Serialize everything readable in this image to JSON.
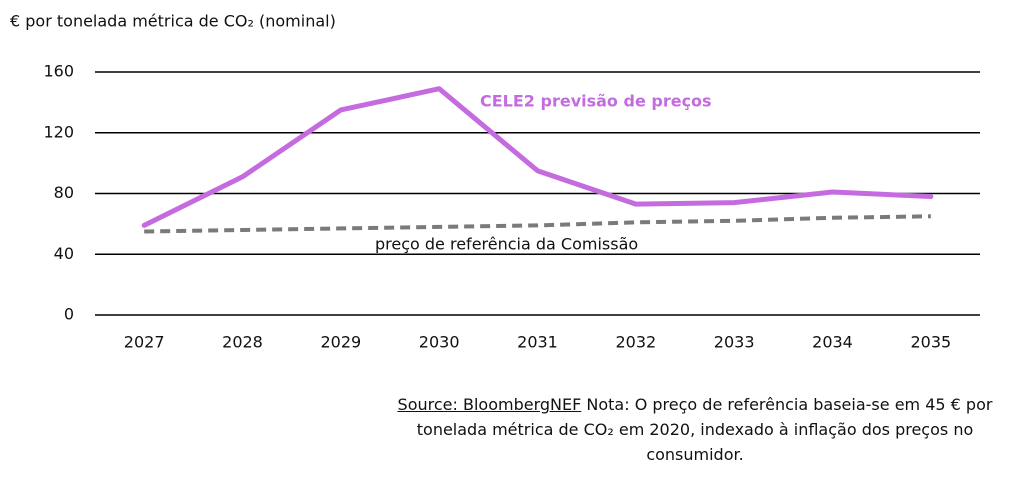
{
  "chart_data": {
    "type": "line",
    "y_label": "€ por tonelada métrica de CO₂ (nominal)",
    "categories": [
      "2027",
      "2028",
      "2029",
      "2030",
      "2031",
      "2032",
      "2033",
      "2034",
      "2035"
    ],
    "series": [
      {
        "name": "CELE2 previsão de preços",
        "color": "#c56be0",
        "dashed": false,
        "values": [
          59,
          91,
          135,
          149,
          95,
          73,
          74,
          81,
          78
        ]
      },
      {
        "name": "preço de referência da Comissão",
        "color": "#7a7a7a",
        "dashed": true,
        "values": [
          55,
          56,
          57,
          58,
          59,
          61,
          62,
          64,
          65
        ]
      }
    ],
    "ylim": [
      0,
      160
    ],
    "yticks": [
      0,
      40,
      80,
      120,
      160
    ],
    "grid": true,
    "source": "Source: BloombergNEF",
    "note": "Nota: O preço de referência baseia-se em 45 € por tonelada métrica de CO₂ em 2020, indexado à inflação dos preços no consumidor."
  }
}
